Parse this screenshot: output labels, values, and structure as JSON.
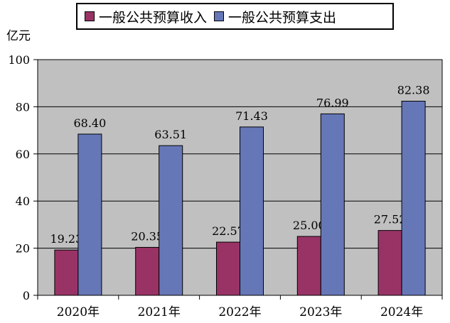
{
  "chart_data": {
    "type": "bar",
    "title": "",
    "ylabel": "亿元",
    "xlabel": "",
    "categories": [
      "2020年",
      "2021年",
      "2022年",
      "2023年",
      "2024年"
    ],
    "series": [
      {
        "name": "一般公共预算收入",
        "values": [
          19.23,
          20.35,
          22.57,
          25.0,
          27.52
        ],
        "value_labels": [
          "19.23",
          "20.35",
          "22.57",
          "25.00",
          "27.52"
        ],
        "color": "#993366"
      },
      {
        "name": "一般公共预算支出",
        "values": [
          68.4,
          63.51,
          71.43,
          76.99,
          82.38
        ],
        "value_labels": [
          "68.40",
          "63.51",
          "71.43",
          "76.99",
          "82.38"
        ],
        "color": "#6677B8"
      }
    ],
    "ylim": [
      0,
      100
    ],
    "yticks": [
      "0",
      "20",
      "40",
      "60",
      "80",
      "100"
    ],
    "grid": true,
    "legend_position": "top",
    "plot_background": "#C0C0C0"
  }
}
